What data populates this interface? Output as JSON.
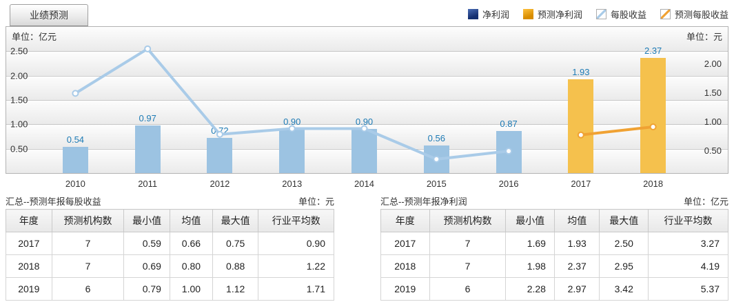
{
  "tab": {
    "label": "业绩预测"
  },
  "legend": {
    "items": [
      {
        "label": "净利润",
        "swatch": "solid-blue",
        "color": "#142f70"
      },
      {
        "label": "预测净利润",
        "swatch": "solid-orange",
        "color": "#e89b00"
      },
      {
        "label": "每股收益",
        "swatch": "diag-blue",
        "color": "#a9cbe8"
      },
      {
        "label": "预测每股收益",
        "swatch": "diag-orange",
        "color": "#f0a233"
      }
    ]
  },
  "chart": {
    "left_unit": "单位：亿元",
    "right_unit": "单位：元"
  },
  "chart_data": {
    "type": "bar+line dual-axis",
    "categories": [
      "2010",
      "2011",
      "2012",
      "2013",
      "2014",
      "2015",
      "2016",
      "2017",
      "2018"
    ],
    "left_axis": {
      "unit": "单位：亿元",
      "ticks": [
        "0.50",
        "1.00",
        "1.50",
        "2.00",
        "2.50"
      ],
      "range": [
        0,
        3.0
      ]
    },
    "right_axis": {
      "unit": "单位：元",
      "ticks": [
        "0.50",
        "1.00",
        "1.50",
        "2.00"
      ],
      "range": [
        0,
        2.53
      ]
    },
    "grid": true,
    "legend_position": "top-right",
    "series": [
      {
        "name": "净利润",
        "type": "bar",
        "axis": "left",
        "color": "#9cc3e2",
        "values": [
          "0.54",
          "0.97",
          "0.72",
          "0.90",
          "0.90",
          "0.56",
          "0.87",
          null,
          null
        ]
      },
      {
        "name": "预测净利润",
        "type": "bar",
        "axis": "left",
        "color": "#f5c14d",
        "values": [
          null,
          null,
          null,
          null,
          null,
          null,
          null,
          "1.93",
          "2.37"
        ]
      },
      {
        "name": "每股收益",
        "type": "line",
        "axis": "right",
        "color": "#a9cbe8",
        "values": [
          1.38,
          2.15,
          0.67,
          0.77,
          0.77,
          0.24,
          0.38,
          null,
          null
        ]
      },
      {
        "name": "预测每股收益",
        "type": "line",
        "axis": "right",
        "color": "#f0a233",
        "values": [
          null,
          null,
          null,
          null,
          null,
          null,
          null,
          0.66,
          0.8
        ]
      }
    ]
  },
  "tables": {
    "eps": {
      "title": "汇总--预测年报每股收益",
      "unit": "单位：元",
      "columns": [
        "年度",
        "预测机构数",
        "最小值",
        "均值",
        "最大值",
        "行业平均数"
      ],
      "rows": [
        [
          "2017",
          "7",
          "0.59",
          "0.66",
          "0.75",
          "0.90"
        ],
        [
          "2018",
          "7",
          "0.69",
          "0.80",
          "0.88",
          "1.22"
        ],
        [
          "2019",
          "6",
          "0.79",
          "1.00",
          "1.12",
          "1.71"
        ]
      ]
    },
    "net_profit": {
      "title": "汇总--预测年报净利润",
      "unit": "单位：亿元",
      "columns": [
        "年度",
        "预测机构数",
        "最小值",
        "均值",
        "最大值",
        "行业平均数"
      ],
      "rows": [
        [
          "2017",
          "7",
          "1.69",
          "1.93",
          "2.50",
          "3.27"
        ],
        [
          "2018",
          "7",
          "1.98",
          "2.37",
          "2.95",
          "4.19"
        ],
        [
          "2019",
          "6",
          "2.28",
          "2.97",
          "3.42",
          "5.37"
        ]
      ]
    }
  }
}
